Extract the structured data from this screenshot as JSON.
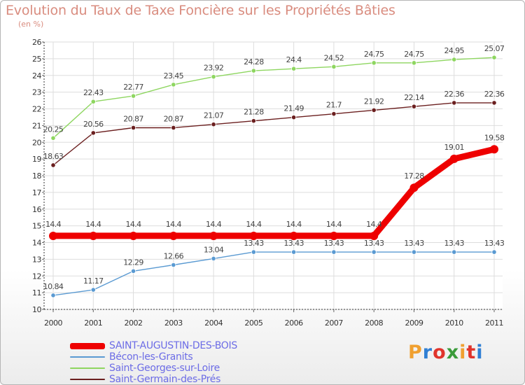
{
  "chart_data": {
    "type": "line",
    "title": "Evolution du Taux de Taxe Foncière sur les Propriétés Bâties",
    "ylabel": "(en %)",
    "xlabel": "",
    "ylim": [
      10,
      26
    ],
    "yticks": [
      "10",
      "11",
      "12",
      "13",
      "14",
      "15",
      "16",
      "17",
      "18",
      "19",
      "20",
      "21",
      "22",
      "23",
      "24",
      "25",
      "26"
    ],
    "categories": [
      "2000",
      "2001",
      "2002",
      "2003",
      "2004",
      "2005",
      "2006",
      "2007",
      "2008",
      "2009",
      "2010",
      "2011"
    ],
    "grid": true,
    "legend_position": "bottom-left",
    "series": [
      {
        "name": "SAINT-AUGUSTIN-DES-BOIS",
        "color": "#ee0000",
        "emphasis": true,
        "values": [
          14.4,
          14.4,
          14.4,
          14.4,
          14.4,
          14.4,
          14.4,
          14.4,
          14.4,
          17.28,
          19.01,
          19.58
        ],
        "labels": [
          "14.4",
          "14.4",
          "14.4",
          "14.4",
          "14.4",
          "14.4",
          "14.4",
          "14.4",
          "14.4",
          "17.28",
          "19.01",
          "19.58"
        ]
      },
      {
        "name": "Bécon-les-Granits",
        "color": "#5a9ad2",
        "emphasis": false,
        "values": [
          10.84,
          11.17,
          12.29,
          12.66,
          13.04,
          13.43,
          13.43,
          13.43,
          13.43,
          13.43,
          13.43,
          13.43
        ],
        "labels": [
          "10.84",
          "11.17",
          "12.29",
          "12.66",
          "13.04",
          "13.43",
          "13.43",
          "13.43",
          "13.43",
          "13.43",
          "13.43",
          "13.43"
        ]
      },
      {
        "name": "Saint-Georges-sur-Loire",
        "color": "#8ed660",
        "emphasis": false,
        "values": [
          20.25,
          22.43,
          22.77,
          23.45,
          23.92,
          24.28,
          24.4,
          24.52,
          24.75,
          24.75,
          24.95,
          25.07
        ],
        "labels": [
          "20.25",
          "22.43",
          "22.77",
          "23.45",
          "23.92",
          "24.28",
          "24.4",
          "24.52",
          "24.75",
          "24.75",
          "24.95",
          "25.07"
        ]
      },
      {
        "name": "Saint-Germain-des-Prés",
        "color": "#6b1f1f",
        "emphasis": false,
        "values": [
          18.63,
          20.56,
          20.87,
          20.87,
          21.07,
          21.28,
          21.49,
          21.7,
          21.92,
          22.14,
          22.36,
          22.36
        ],
        "labels": [
          "18.63",
          "20.56",
          "20.87",
          "20.87",
          "21.07",
          "21.28",
          "21.49",
          "21.7",
          "21.92",
          "22.14",
          "22.36",
          "22.36"
        ]
      }
    ]
  },
  "brand": {
    "logo_text": "Proxiti",
    "logo_colors": [
      "#f0a030",
      "#2f7fd4",
      "#e0342c",
      "#3a9b3a",
      "#f0a030",
      "#e0342c",
      "#2f7fd4"
    ]
  }
}
